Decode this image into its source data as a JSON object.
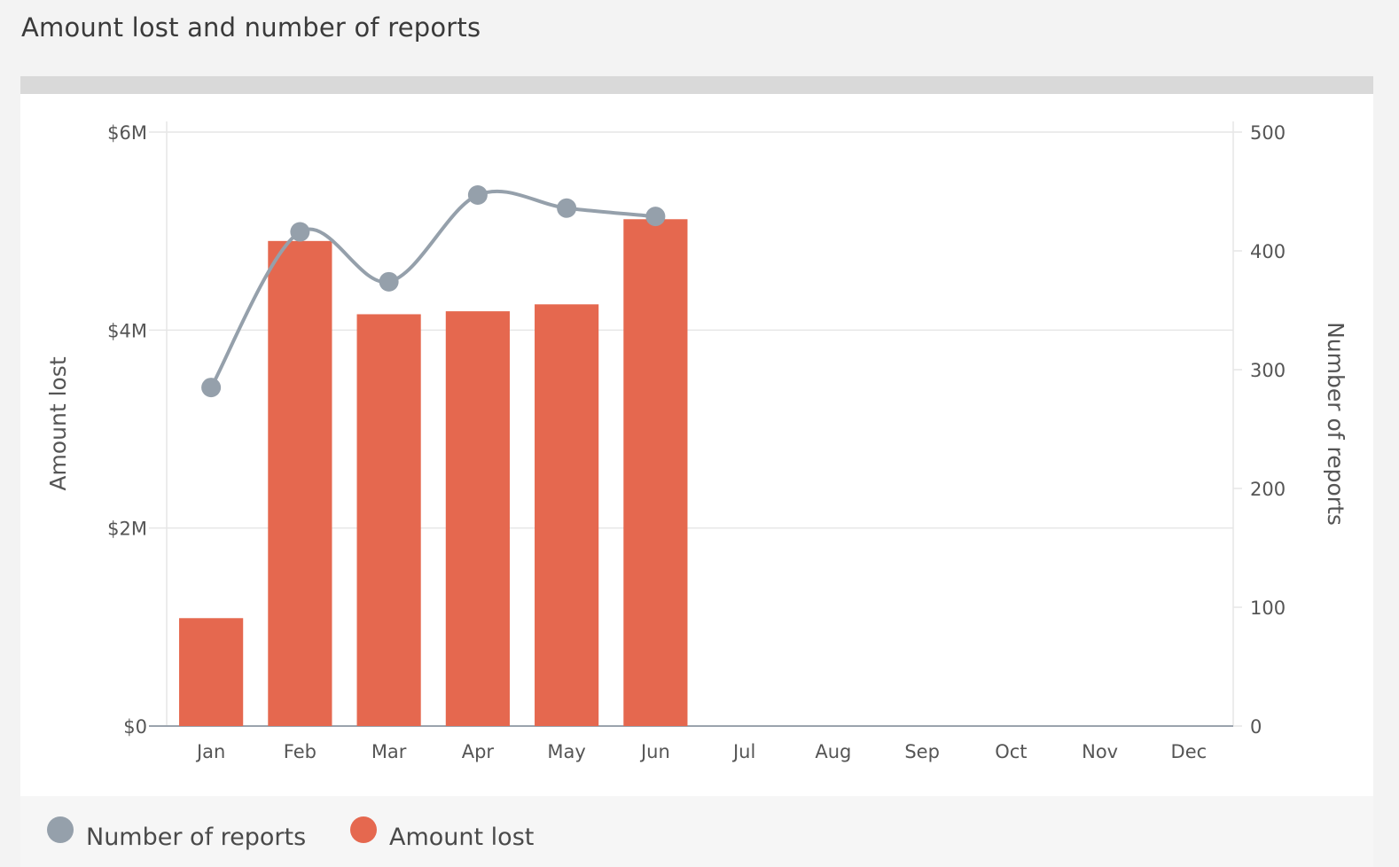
{
  "page": {
    "title": "Amount lost and number of reports"
  },
  "colors": {
    "bar": "#e5684f",
    "line": "#95a0ab",
    "grid": "#e6e6e6",
    "axis": "#9aa3ad"
  },
  "chart_data": {
    "type": "bar",
    "title": "Amount lost and number of reports",
    "categories": [
      "Jan",
      "Feb",
      "Mar",
      "Apr",
      "May",
      "Jun",
      "Jul",
      "Aug",
      "Sep",
      "Oct",
      "Nov",
      "Dec"
    ],
    "series": [
      {
        "name": "Amount lost",
        "type": "bar",
        "axis": "left",
        "values": [
          1090000,
          4900000,
          4160000,
          4190000,
          4260000,
          5120000,
          null,
          null,
          null,
          null,
          null,
          null
        ]
      },
      {
        "name": "Number of reports",
        "type": "line",
        "axis": "right",
        "values": [
          285,
          416,
          374,
          447,
          436,
          429,
          null,
          null,
          null,
          null,
          null,
          null
        ]
      }
    ],
    "y_left": {
      "label": "Amount lost",
      "range": [
        0,
        6000000
      ],
      "ticks": [
        0,
        2000000,
        4000000,
        6000000
      ],
      "tick_labels": [
        "$0",
        "$2M",
        "$4M",
        "$6M"
      ]
    },
    "y_right": {
      "label": "Number of reports",
      "range": [
        0,
        500
      ],
      "ticks": [
        0,
        100,
        200,
        300,
        400,
        500
      ],
      "tick_labels": [
        "0",
        "100",
        "200",
        "300",
        "400",
        "500"
      ]
    },
    "grid": true,
    "legend": {
      "position": "bottom-left",
      "items": [
        "Number of reports",
        "Amount lost"
      ]
    }
  }
}
